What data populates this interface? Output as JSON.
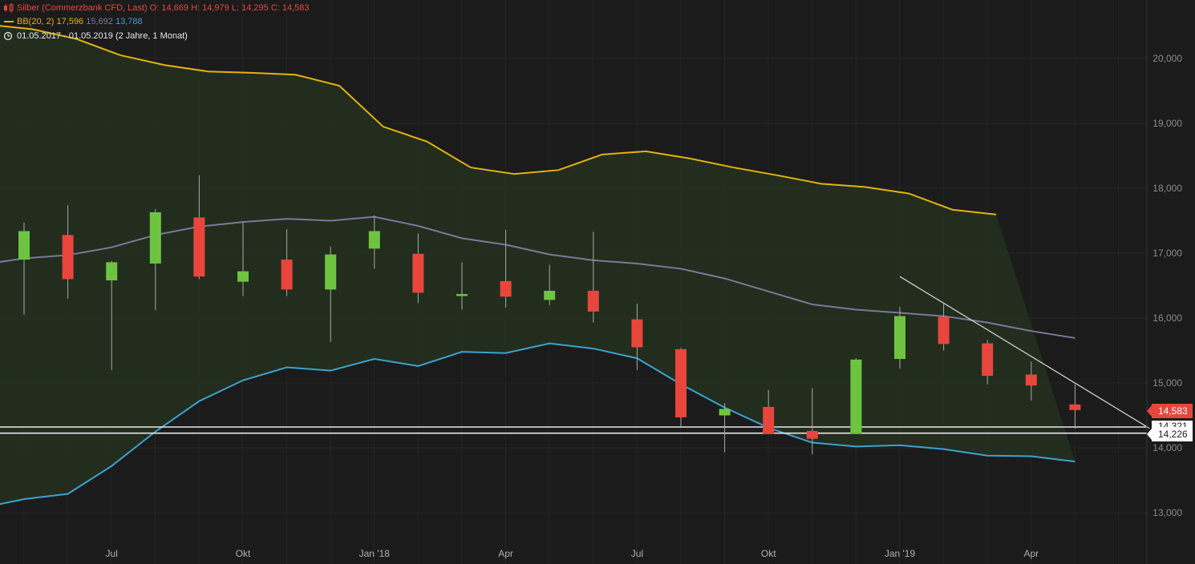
{
  "legend": {
    "instrument": "Silber (Commerzbank CFD, Last)",
    "open_label": "O:",
    "open": "14,669",
    "high_label": "H:",
    "high": "14,979",
    "low_label": "L:",
    "low": "14,295",
    "close_label": "C:",
    "close": "14,583",
    "indicator": "BB(20, 2)",
    "bb_upper": "17,596",
    "bb_mid": "15,692",
    "bb_lower": "13,788",
    "range": "01.05.2017 - 01.05.2019",
    "range_detail": "(2 Jahre, 1 Monat)"
  },
  "price_tags": {
    "last": "14,583",
    "line1": "14,321",
    "line2": "14,226"
  },
  "colors": {
    "background": "#1b1b1b",
    "up": "#6ec440",
    "down": "#e8463c",
    "bb_upper": "#e5b20d",
    "bb_mid": "#7d7898",
    "bb_lower": "#3aa3d0",
    "band_fill": "#23301f",
    "hline": "#e8e8e8",
    "trendline": "#cfcfcf"
  },
  "chart_data": {
    "type": "candlestick",
    "title": "Silber (Commerzbank CFD, Last)",
    "y_ticks": [
      "13,000",
      "14,000",
      "15,000",
      "16,000",
      "17,000",
      "18,000",
      "19,000",
      "20,000"
    ],
    "ylim": [
      12.6,
      21.1
    ],
    "x_ticks": [
      {
        "label": "Jul",
        "index": 2
      },
      {
        "label": "Okt",
        "index": 5
      },
      {
        "label": "Jan '18",
        "index": 8
      },
      {
        "label": "Apr",
        "index": 11
      },
      {
        "label": "Jul",
        "index": 14
      },
      {
        "label": "Okt",
        "index": 17
      },
      {
        "label": "Jan '19",
        "index": 20
      },
      {
        "label": "Apr",
        "index": 23
      }
    ],
    "candles": [
      {
        "month": "2017-05",
        "o": 16.9,
        "h": 17.47,
        "l": 16.05,
        "c": 17.34
      },
      {
        "month": "2017-06",
        "o": 17.28,
        "h": 17.74,
        "l": 16.3,
        "c": 16.6
      },
      {
        "month": "2017-07",
        "o": 16.58,
        "h": 16.88,
        "l": 15.2,
        "c": 16.86
      },
      {
        "month": "2017-08",
        "o": 16.84,
        "h": 17.68,
        "l": 16.12,
        "c": 17.63
      },
      {
        "month": "2017-09",
        "o": 17.55,
        "h": 18.2,
        "l": 16.6,
        "c": 16.64
      },
      {
        "month": "2017-10",
        "o": 16.56,
        "h": 17.48,
        "l": 16.34,
        "c": 16.72
      },
      {
        "month": "2017-11",
        "o": 16.9,
        "h": 17.37,
        "l": 16.34,
        "c": 16.44
      },
      {
        "month": "2017-12",
        "o": 16.44,
        "h": 17.1,
        "l": 15.63,
        "c": 16.98
      },
      {
        "month": "2018-01",
        "o": 17.07,
        "h": 17.58,
        "l": 16.76,
        "c": 17.34
      },
      {
        "month": "2018-02",
        "o": 16.99,
        "h": 17.3,
        "l": 16.23,
        "c": 16.39
      },
      {
        "month": "2018-03",
        "o": 16.34,
        "h": 16.86,
        "l": 16.13,
        "c": 16.37
      },
      {
        "month": "2018-04",
        "o": 16.57,
        "h": 17.36,
        "l": 16.16,
        "c": 16.33
      },
      {
        "month": "2018-05",
        "o": 16.28,
        "h": 16.82,
        "l": 16.2,
        "c": 16.42
      },
      {
        "month": "2018-06",
        "o": 16.42,
        "h": 17.33,
        "l": 15.93,
        "c": 16.1
      },
      {
        "month": "2018-07",
        "o": 15.98,
        "h": 16.22,
        "l": 15.2,
        "c": 15.55
      },
      {
        "month": "2018-08",
        "o": 15.52,
        "h": 15.54,
        "l": 14.32,
        "c": 14.47
      },
      {
        "month": "2018-09",
        "o": 14.5,
        "h": 14.69,
        "l": 13.93,
        "c": 14.6
      },
      {
        "month": "2018-10",
        "o": 14.63,
        "h": 14.89,
        "l": 14.25,
        "c": 14.22
      },
      {
        "month": "2018-11",
        "o": 14.26,
        "h": 14.92,
        "l": 13.9,
        "c": 14.14
      },
      {
        "month": "2018-12",
        "o": 14.22,
        "h": 15.38,
        "l": 14.21,
        "c": 15.36
      },
      {
        "month": "2019-01",
        "o": 15.37,
        "h": 16.17,
        "l": 15.22,
        "c": 16.03
      },
      {
        "month": "2019-02",
        "o": 16.02,
        "h": 16.22,
        "l": 15.5,
        "c": 15.6
      },
      {
        "month": "2019-03",
        "o": 15.61,
        "h": 15.66,
        "l": 14.98,
        "c": 15.11
      },
      {
        "month": "2019-04",
        "o": 15.13,
        "h": 15.33,
        "l": 14.73,
        "c": 14.96
      },
      {
        "month": "2019-05",
        "o": 14.669,
        "h": 14.979,
        "l": 14.295,
        "c": 14.583
      }
    ],
    "series": [
      {
        "name": "BB upper",
        "x_start": -0.8,
        "values": [
          20.52,
          20.45,
          20.3,
          20.05,
          19.9,
          19.8,
          19.78,
          19.75,
          19.58,
          18.95,
          18.72,
          18.32,
          18.22,
          18.28,
          18.52,
          18.57,
          18.46,
          18.32,
          18.2,
          18.07,
          18.02,
          17.92,
          17.67,
          17.596
        ]
      },
      {
        "name": "BB mid",
        "x_start": -1,
        "values": [
          16.82,
          16.92,
          16.97,
          17.09,
          17.28,
          17.41,
          17.48,
          17.53,
          17.5,
          17.56,
          17.42,
          17.23,
          17.13,
          16.98,
          16.89,
          16.84,
          16.76,
          16.61,
          16.41,
          16.21,
          16.13,
          16.08,
          16.03,
          15.93,
          15.8,
          15.692
        ]
      },
      {
        "name": "BB lower",
        "x_start": -1,
        "values": [
          13.07,
          13.21,
          13.29,
          13.72,
          14.25,
          14.72,
          15.04,
          15.24,
          15.19,
          15.37,
          15.26,
          15.48,
          15.46,
          15.61,
          15.53,
          15.38,
          14.98,
          14.62,
          14.31,
          14.08,
          14.02,
          14.04,
          13.98,
          13.88,
          13.87,
          13.788
        ]
      }
    ],
    "horizontal_lines": [
      14.321,
      14.226
    ],
    "trendline": {
      "x1": 20.0,
      "y1": 16.64,
      "x2": 25.7,
      "y2": 14.3
    }
  }
}
